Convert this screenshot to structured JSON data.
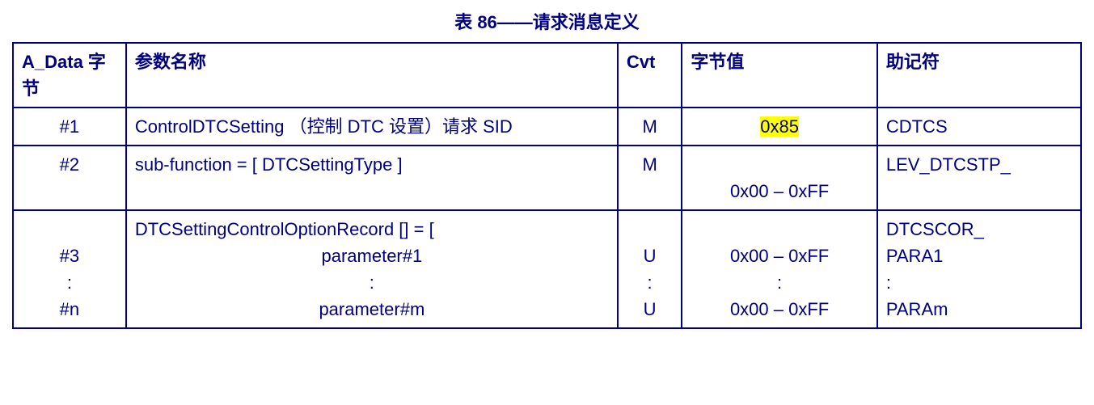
{
  "title": "表 86——请求消息定义",
  "headers": {
    "a_data": "A_Data   字节",
    "param_name": "参数名称",
    "cvt": "Cvt",
    "byte_val": "字节值",
    "mnemonic": "助记符"
  },
  "rows": {
    "r1": {
      "a": "#1",
      "p": "ControlDTCSetting （控制 DTC 设置）请求 SID",
      "c": "M",
      "b": "0x85",
      "b_highlight": true,
      "m": "CDTCS"
    },
    "r2": {
      "a": "#2",
      "p": "sub-function = [ DTCSettingType ]",
      "c": "M",
      "b_top": "",
      "b_bot": "0x00 – 0xFF",
      "m": "LEV_DTCSTP_"
    },
    "r3": {
      "a1": "",
      "a2": "#3",
      "a3": ":",
      "a4": "#n",
      "p1": "DTCSettingControlOptionRecord [] = [",
      "p2": "parameter#1",
      "p3": ":",
      "p4": "parameter#m",
      "c1": "",
      "c2": "U",
      "c3": ":",
      "c4": "U",
      "b1": "",
      "b2": "0x00 – 0xFF",
      "b3": ":",
      "b4": "0x00 – 0xFF",
      "m1": "DTCSCOR_",
      "m2": "PARA1",
      "m3": ":",
      "m4": "PARAm"
    }
  },
  "colors": {
    "text": "#000080",
    "border": "#000080",
    "highlight": "#ffff00",
    "background": "#ffffff"
  }
}
